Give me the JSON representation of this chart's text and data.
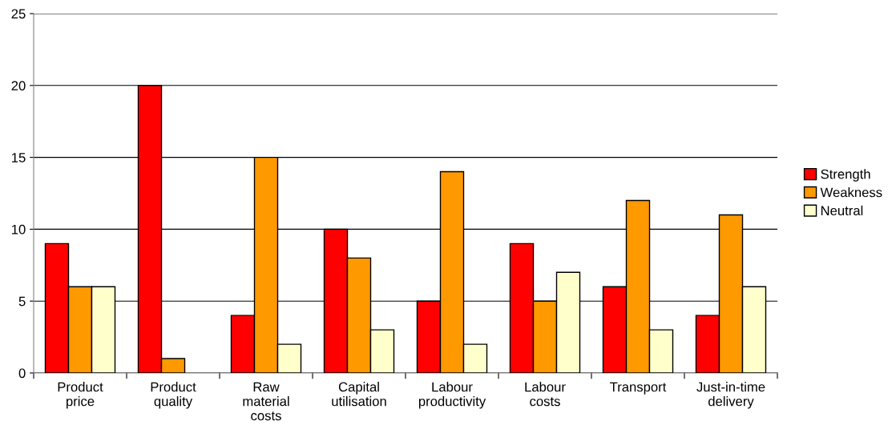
{
  "chart_data": {
    "type": "bar",
    "categories": [
      "Product\nprice",
      "Product\nquality",
      "Raw\nmaterial\ncosts",
      "Capital\nutilisation",
      "Labour\nproductivity",
      "Labour\ncosts",
      "Transport",
      "Just-in-time\ndelivery"
    ],
    "series": [
      {
        "name": "Strength",
        "color": "#ff0000",
        "values": [
          9,
          20,
          4,
          10,
          5,
          9,
          6,
          4
        ]
      },
      {
        "name": "Weakness",
        "color": "#ff9900",
        "values": [
          6,
          1,
          15,
          8,
          14,
          5,
          12,
          11
        ]
      },
      {
        "name": "Neutral",
        "color": "#ffffcc",
        "values": [
          6,
          null,
          2,
          3,
          2,
          7,
          3,
          6
        ]
      }
    ],
    "ylim": [
      0,
      25
    ],
    "yticks": [
      0,
      5,
      10,
      15,
      20,
      25
    ],
    "grid": "y",
    "legend": "right"
  }
}
